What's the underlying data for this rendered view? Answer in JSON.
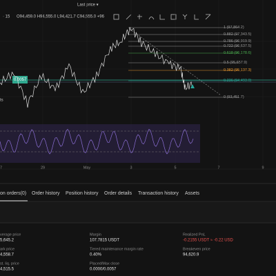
{
  "header": {
    "interval": "· 15",
    "ohlc": "O94,459.0 H94,555.0 L94,421.7 C94,555.0 +96",
    "price_mode": "Last price ▾"
  },
  "chart": {
    "fib_levels": [
      {
        "label": "1 (97,864.2)",
        "color": "#9a9a9a"
      },
      {
        "label": "0.882 (97,343.5)",
        "color": "#9a9a9a"
      },
      {
        "label": "0.786 (96,919.9)",
        "color": "#9a9a9a"
      },
      {
        "label": "0.722 (96,637.5)",
        "color": "#9a9a9a"
      },
      {
        "label": "0.618 (96,178.6)",
        "color": "#4caf50"
      },
      {
        "label": "0.5 (95,657.9)",
        "color": "#9a9a9a"
      },
      {
        "label": "0.382 (95,137.3)",
        "color": "#e8972e"
      },
      {
        "label": "0.236 (94,493.0)",
        "color": "#26a69a"
      },
      {
        "label": "0 (93,451.7)",
        "color": "#9a9a9a"
      }
    ],
    "position_tag": "0.0057",
    "left_label": "ts",
    "x_labels": [
      "7",
      "29",
      "May",
      "3",
      "5",
      "7",
      "9"
    ]
  },
  "tabs": [
    "on orders(0)",
    "Order history",
    "Position history",
    "Order details",
    "Transaction history",
    "Assets"
  ],
  "details": [
    {
      "label": "verage price",
      "value": "5,645.2"
    },
    {
      "label": "Margin",
      "value": "107.7815 USDT"
    },
    {
      "label": "Realized PnL",
      "value": "-0.2155 USDT ≈ -0.22 USD"
    },
    {
      "label": "ark price",
      "value": "4,558.7"
    },
    {
      "label": "Tiered maintenance margin rate",
      "value": "0.40%"
    },
    {
      "label": "Breakeven price",
      "value": "94,620.9"
    },
    {
      "label": "st. liq. price",
      "value": "4,515.5"
    },
    {
      "label": "Placed/Max close",
      "value": "0.0000/0.0057"
    }
  ]
}
